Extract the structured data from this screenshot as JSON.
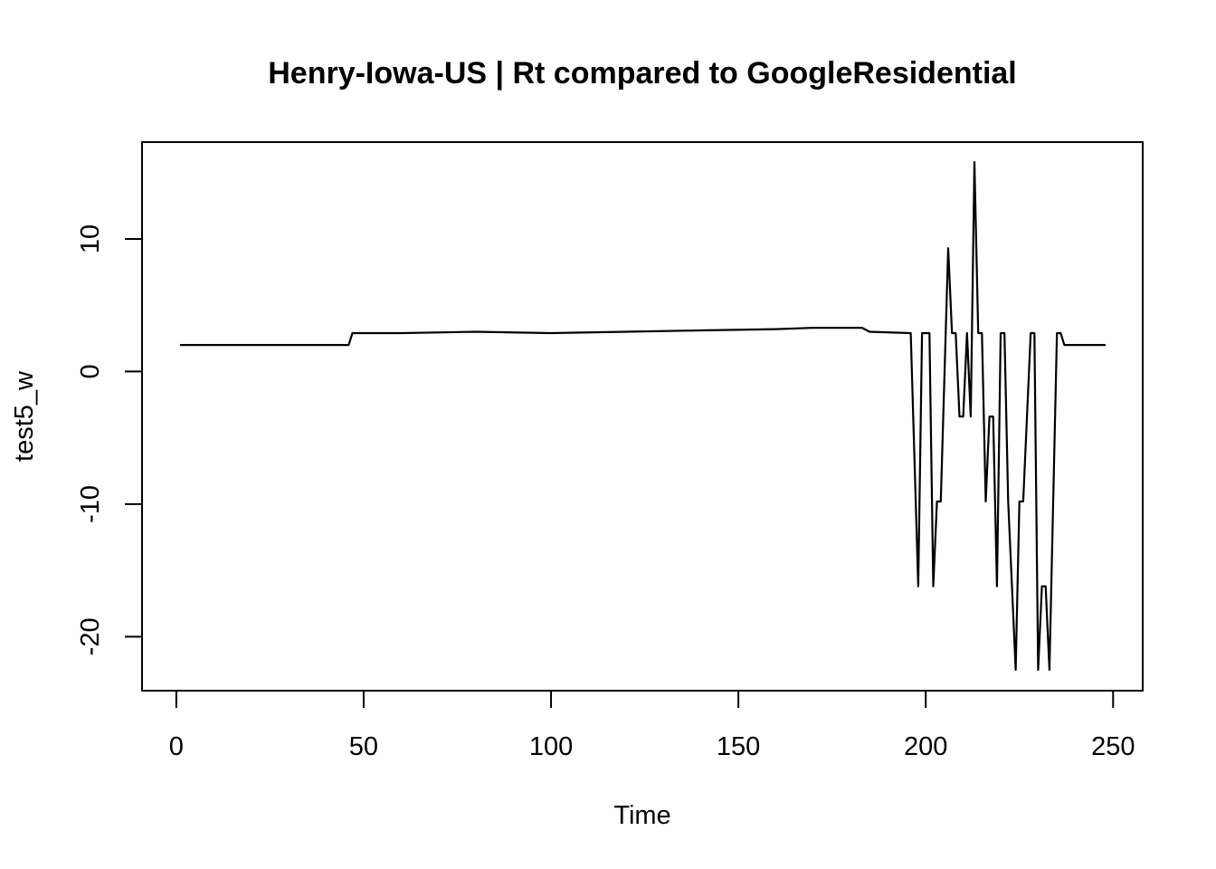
{
  "chart_data": {
    "type": "line",
    "title": "Henry-Iowa-US | Rt compared to GoogleResidential",
    "xlabel": "Time",
    "ylabel": "test5_w",
    "xlim": [
      1,
      248
    ],
    "ylim": [
      -22.5,
      15.8
    ],
    "x_ticks": [
      0,
      50,
      100,
      150,
      200,
      250
    ],
    "y_ticks": [
      -20,
      -10,
      0,
      10
    ],
    "grid": false,
    "legend": "none",
    "line_color": "#000000",
    "series": [
      {
        "points": [
          [
            1,
            2.0
          ],
          [
            46,
            2.0
          ],
          [
            47,
            2.9
          ],
          [
            60,
            2.9
          ],
          [
            80,
            3.0
          ],
          [
            100,
            2.9
          ],
          [
            120,
            3.0
          ],
          [
            140,
            3.1
          ],
          [
            160,
            3.2
          ],
          [
            170,
            3.3
          ],
          [
            183,
            3.3
          ],
          [
            185,
            3.0
          ],
          [
            196,
            2.9
          ],
          [
            198,
            -16.2
          ],
          [
            199,
            2.9
          ],
          [
            201,
            2.9
          ],
          [
            202,
            -16.2
          ],
          [
            203,
            -9.8
          ],
          [
            204,
            -9.8
          ],
          [
            206,
            9.3
          ],
          [
            207,
            2.9
          ],
          [
            208,
            2.9
          ],
          [
            209,
            -3.4
          ],
          [
            210,
            -3.4
          ],
          [
            211,
            2.9
          ],
          [
            212,
            -3.4
          ],
          [
            213,
            15.8
          ],
          [
            214,
            2.9
          ],
          [
            215,
            2.9
          ],
          [
            216,
            -9.8
          ],
          [
            217,
            -3.4
          ],
          [
            218,
            -3.4
          ],
          [
            219,
            -16.2
          ],
          [
            220,
            2.9
          ],
          [
            221,
            2.9
          ],
          [
            222,
            -9.8
          ],
          [
            224,
            -22.5
          ],
          [
            225,
            -9.8
          ],
          [
            226,
            -9.8
          ],
          [
            228,
            2.9
          ],
          [
            229,
            2.9
          ],
          [
            230,
            -22.5
          ],
          [
            231,
            -16.2
          ],
          [
            232,
            -16.2
          ],
          [
            233,
            -22.5
          ],
          [
            235,
            2.9
          ],
          [
            236,
            2.9
          ],
          [
            237,
            2.0
          ],
          [
            248,
            2.0
          ]
        ]
      }
    ]
  }
}
